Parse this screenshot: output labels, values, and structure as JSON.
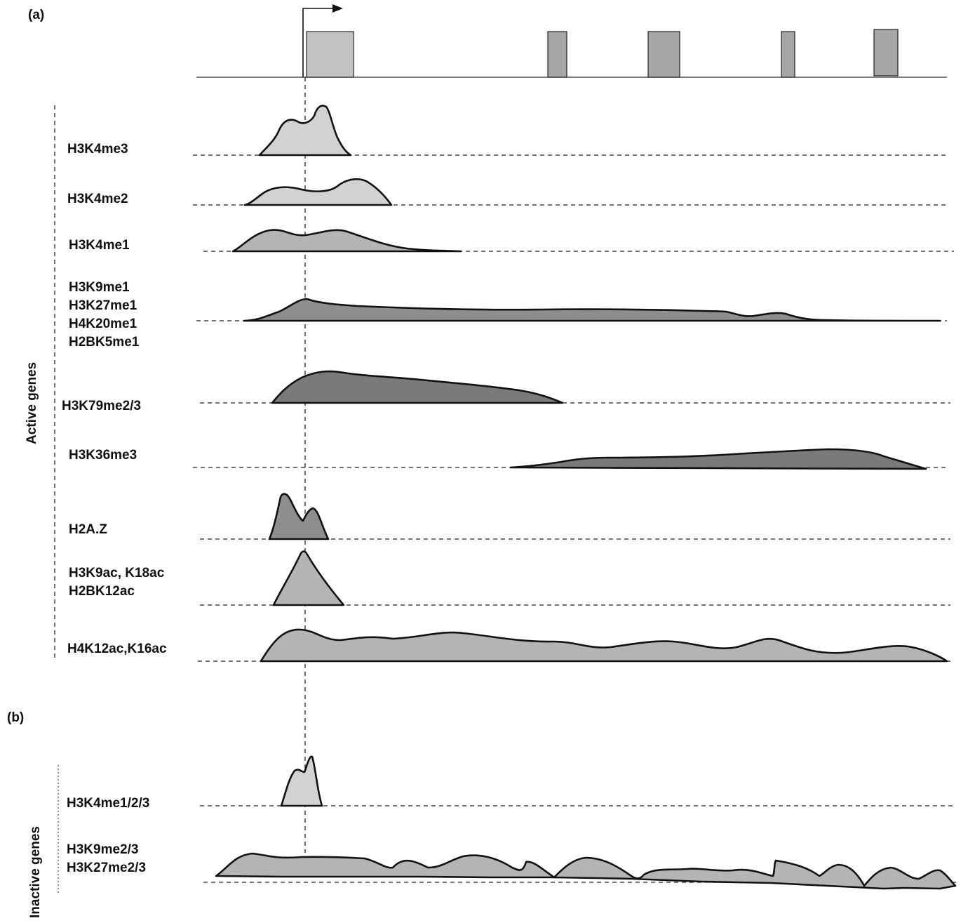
{
  "panels": {
    "a_label": "(a)",
    "b_label": "(b)"
  },
  "groups": {
    "active": "Active genes",
    "inactive": "Inactive genes"
  },
  "tracks_active": [
    {
      "lines": [
        "H3K4me3"
      ]
    },
    {
      "lines": [
        "H3K4me2"
      ]
    },
    {
      "lines": [
        "H3K4me1"
      ]
    },
    {
      "lines": [
        "H3K9me1",
        "H3K27me1",
        "H4K20me1",
        "H2BK5me1"
      ]
    },
    {
      "lines": [
        "H3K79me2/3"
      ]
    },
    {
      "lines": [
        "H3K36me3"
      ]
    },
    {
      "lines": [
        "H2A.Z"
      ]
    },
    {
      "lines": [
        "H3K9ac, K18ac",
        "H2BK12ac"
      ]
    },
    {
      "lines": [
        "H4K12ac,K16ac"
      ]
    }
  ],
  "tracks_inactive": [
    {
      "lines": [
        "H3K4me1/2/3"
      ]
    },
    {
      "lines": [
        "H3K9me2/3",
        "H3K27me2/3"
      ]
    }
  ],
  "colors": {
    "light_fill": "#d2d2d2",
    "mid_fill": "#b4b4b4",
    "dark_fill": "#8e8e8e",
    "outline": "#111111"
  }
}
